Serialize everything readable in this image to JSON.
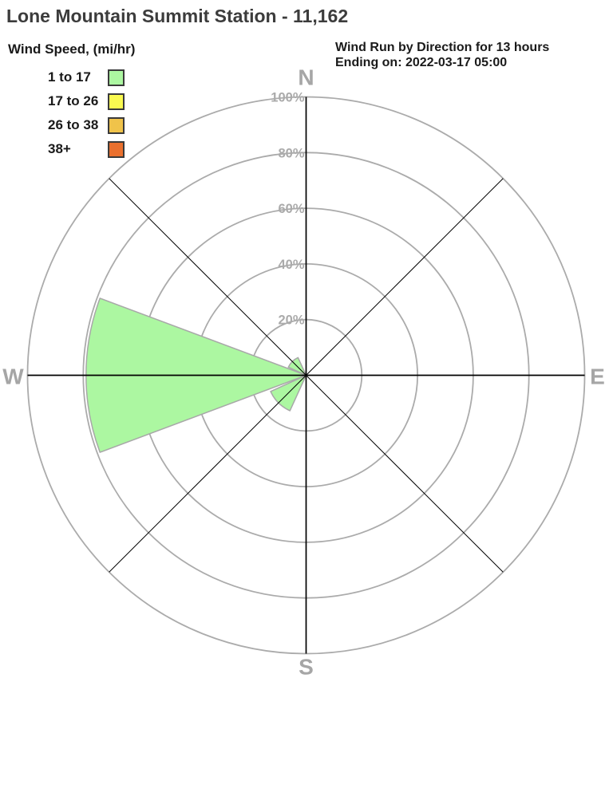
{
  "page": {
    "title": "Lone Mountain Summit Station - 11,162"
  },
  "note": {
    "line1": "Wind Run by Direction for 13 hours",
    "line2": "Ending on: 2022-03-17 05:00"
  },
  "legend": {
    "title": "Wind Speed, (mi/hr)",
    "bins": [
      {
        "label": "1 to 17",
        "color": "#ACF7A1"
      },
      {
        "label": "17 to 26",
        "color": "#FAFA50"
      },
      {
        "label": "26 to 38",
        "color": "#F0C34A"
      },
      {
        "label": "38+",
        "color": "#EA702E"
      }
    ]
  },
  "chart_data": {
    "type": "wind_rose",
    "title": "Wind Run by Direction for 13 hours",
    "units": "percent of total wind run",
    "directions": [
      "N",
      "NE",
      "E",
      "SE",
      "S",
      "SW",
      "W",
      "NW"
    ],
    "series": [
      {
        "name": "1 to 17",
        "color": "#ACF7A1",
        "values": [
          0,
          0,
          0,
          0,
          0,
          14,
          79,
          7
        ]
      },
      {
        "name": "17 to 26",
        "color": "#FAFA50",
        "values": [
          0,
          0,
          0,
          0,
          0,
          0,
          0,
          0
        ]
      },
      {
        "name": "26 to 38",
        "color": "#F0C34A",
        "values": [
          0,
          0,
          0,
          0,
          0,
          0,
          0,
          0
        ]
      },
      {
        "name": "38+",
        "color": "#EA702E",
        "values": [
          0,
          0,
          0,
          0,
          0,
          0,
          0,
          0
        ]
      }
    ],
    "radial_ticks": [
      "20%",
      "40%",
      "60%",
      "80%",
      "100%"
    ],
    "radial_max": 100,
    "radial_tick_interval": 20,
    "compass_labels": {
      "north": "N",
      "east": "E",
      "south": "S",
      "west": "W"
    },
    "sector_width_deg": 41,
    "grid_on": true,
    "grid_color": "#ABABAB",
    "axis_color": "#000000",
    "compass_label_color": "#A6A6A6",
    "wedge_stroke_color": "#A8A8A8"
  }
}
